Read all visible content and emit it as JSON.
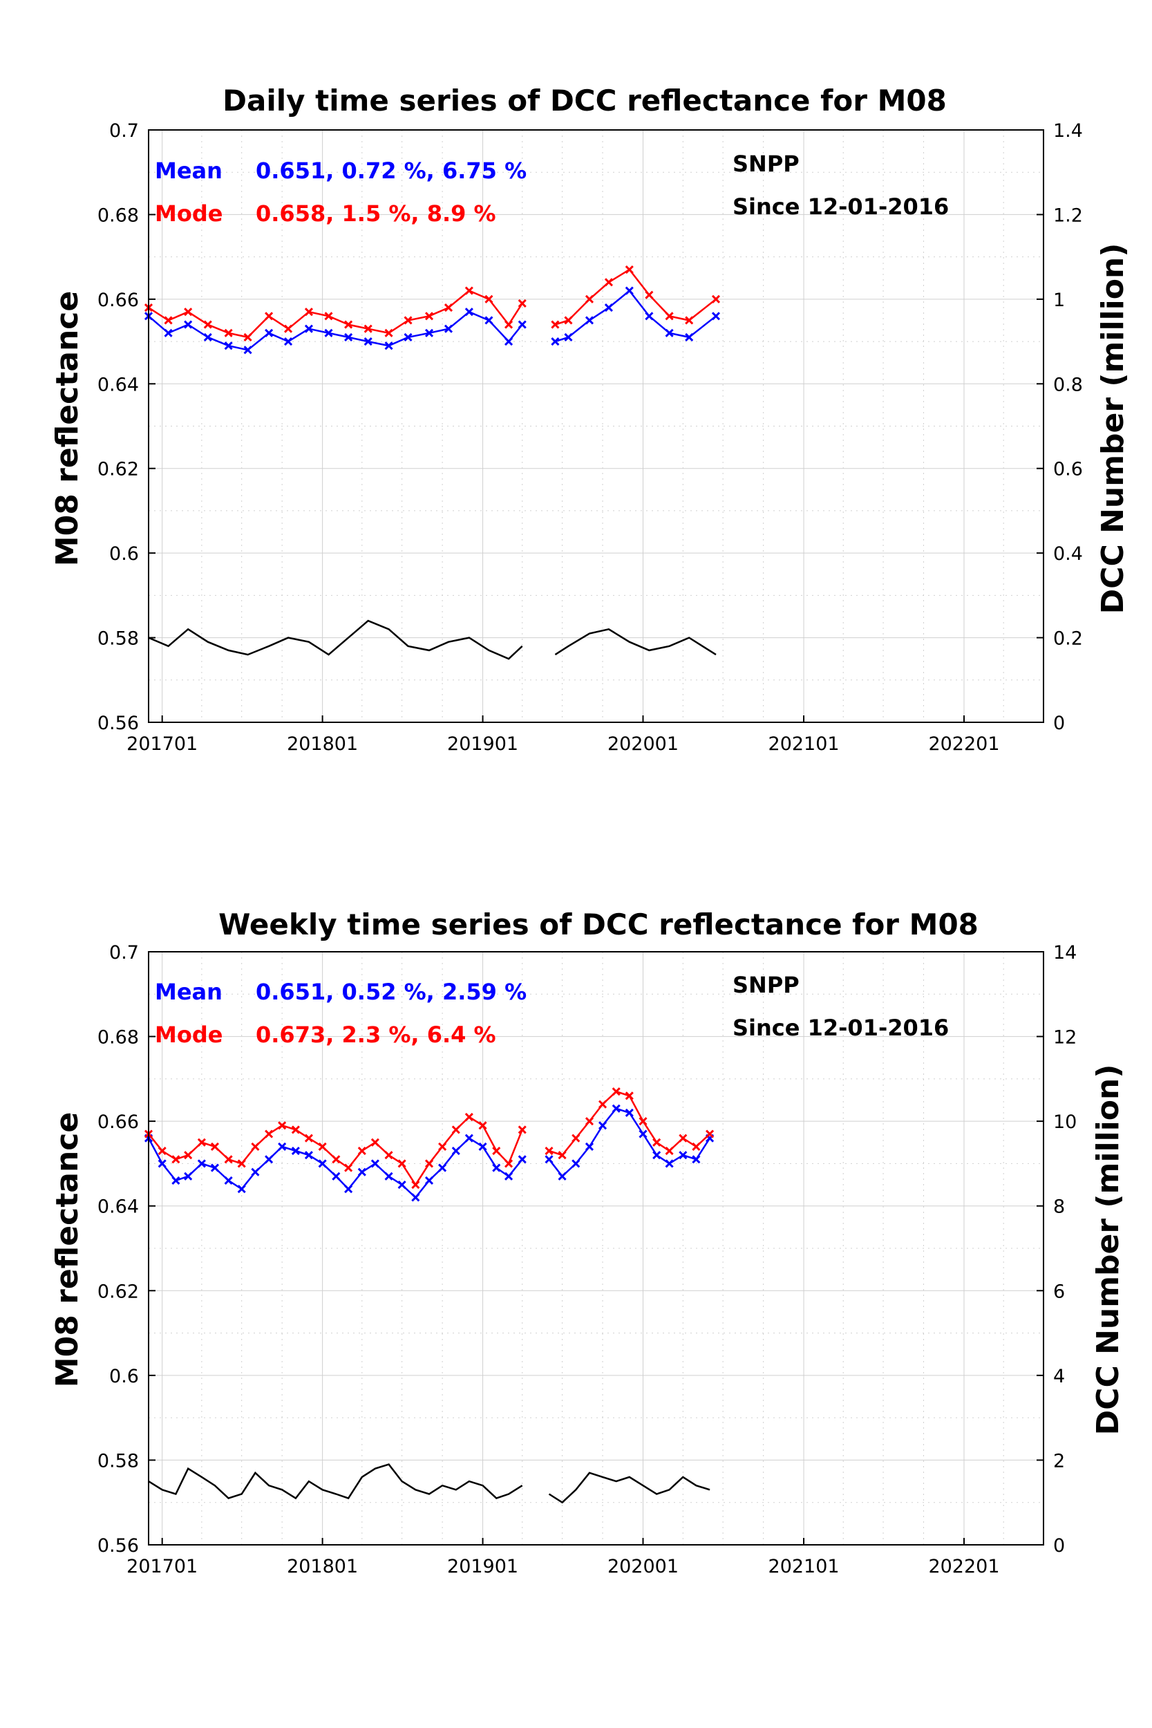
{
  "colors": {
    "mean": "#0000ff",
    "mode": "#ff0000",
    "count": "#000000",
    "grid": "#cfcfcf"
  },
  "chart_data": [
    {
      "type": "line",
      "title": "Daily time series of DCC reflectance for M08",
      "ylabel": "M08 reflectance",
      "y2label": "DCC Number (million)",
      "ylim": [
        0.56,
        0.7
      ],
      "y2lim": [
        0,
        1.4
      ],
      "xlim": [
        "2016-12-01",
        "2022-07-01"
      ],
      "yticks": [
        "0.56",
        "0.58",
        "0.6",
        "0.62",
        "0.64",
        "0.66",
        "0.68",
        "0.7"
      ],
      "y2ticks": [
        "0",
        "0.2",
        "0.4",
        "0.6",
        "0.8",
        "1",
        "1.2",
        "1.4"
      ],
      "xticks": [
        {
          "label": "201701",
          "x": "2017-01-01"
        },
        {
          "label": "201801",
          "x": "2018-01-01"
        },
        {
          "label": "201901",
          "x": "2019-01-01"
        },
        {
          "label": "202001",
          "x": "2020-01-01"
        },
        {
          "label": "202101",
          "x": "2021-01-01"
        },
        {
          "label": "202201",
          "x": "2022-01-01"
        }
      ],
      "grid": true,
      "annotations": {
        "mean_label": "Mean",
        "mean_stats": "0.651, 0.72 %, 6.75 %",
        "mode_label": "Mode",
        "mode_stats": "0.658, 1.5 %, 8.9 %",
        "sensor": "SNPP",
        "since": "Since 12-01-2016"
      },
      "series": [
        {
          "name": "Mean",
          "axis": "left",
          "color": "#0000ff",
          "markers": true,
          "x": [
            "2016-12-01",
            "2017-01-15",
            "2017-03-01",
            "2017-04-15",
            "2017-06-01",
            "2017-07-15",
            "2017-09-01",
            "2017-10-15",
            "2017-12-01",
            "2018-01-15",
            "2018-03-01",
            "2018-04-15",
            "2018-06-01",
            "2018-07-15",
            "2018-09-01",
            "2018-10-15",
            "2018-12-01",
            "2019-01-15",
            "2019-03-01",
            "2019-04-01",
            null,
            "2019-06-15",
            "2019-07-15",
            "2019-09-01",
            "2019-10-15",
            "2019-12-01",
            "2020-01-15",
            "2020-03-01",
            "2020-04-15",
            "2020-06-15"
          ],
          "y": [
            0.656,
            0.652,
            0.654,
            0.651,
            0.649,
            0.648,
            0.652,
            0.65,
            0.653,
            0.652,
            0.651,
            0.65,
            0.649,
            0.651,
            0.652,
            0.653,
            0.657,
            0.655,
            0.65,
            0.654,
            null,
            0.65,
            0.651,
            0.655,
            0.658,
            0.662,
            0.656,
            0.652,
            0.651,
            0.656
          ]
        },
        {
          "name": "Mode",
          "axis": "left",
          "color": "#ff0000",
          "markers": true,
          "x": [
            "2016-12-01",
            "2017-01-15",
            "2017-03-01",
            "2017-04-15",
            "2017-06-01",
            "2017-07-15",
            "2017-09-01",
            "2017-10-15",
            "2017-12-01",
            "2018-01-15",
            "2018-03-01",
            "2018-04-15",
            "2018-06-01",
            "2018-07-15",
            "2018-09-01",
            "2018-10-15",
            "2018-12-01",
            "2019-01-15",
            "2019-03-01",
            "2019-04-01",
            null,
            "2019-06-15",
            "2019-07-15",
            "2019-09-01",
            "2019-10-15",
            "2019-12-01",
            "2020-01-15",
            "2020-03-01",
            "2020-04-15",
            "2020-06-15"
          ],
          "y": [
            0.658,
            0.655,
            0.657,
            0.654,
            0.652,
            0.651,
            0.656,
            0.653,
            0.657,
            0.656,
            0.654,
            0.653,
            0.652,
            0.655,
            0.656,
            0.658,
            0.662,
            0.66,
            0.654,
            0.659,
            null,
            0.654,
            0.655,
            0.66,
            0.664,
            0.667,
            0.661,
            0.656,
            0.655,
            0.66
          ]
        },
        {
          "name": "DCC Number",
          "axis": "right",
          "color": "#000000",
          "markers": false,
          "x": [
            "2016-12-01",
            "2017-01-15",
            "2017-03-01",
            "2017-04-15",
            "2017-06-01",
            "2017-07-15",
            "2017-09-01",
            "2017-10-15",
            "2017-12-01",
            "2018-01-15",
            "2018-03-01",
            "2018-04-15",
            "2018-06-01",
            "2018-07-15",
            "2018-09-01",
            "2018-10-15",
            "2018-12-01",
            "2019-01-15",
            "2019-03-01",
            "2019-04-01",
            null,
            "2019-06-15",
            "2019-07-15",
            "2019-09-01",
            "2019-10-15",
            "2019-12-01",
            "2020-01-15",
            "2020-03-01",
            "2020-04-15",
            "2020-06-15"
          ],
          "y": [
            0.2,
            0.18,
            0.22,
            0.19,
            0.17,
            0.16,
            0.18,
            0.2,
            0.19,
            0.16,
            0.2,
            0.24,
            0.22,
            0.18,
            0.17,
            0.19,
            0.2,
            0.17,
            0.15,
            0.18,
            null,
            0.16,
            0.18,
            0.21,
            0.22,
            0.19,
            0.17,
            0.18,
            0.2,
            0.16
          ]
        }
      ]
    },
    {
      "type": "line",
      "title": "Weekly time series of DCC reflectance for M08",
      "ylabel": "M08 reflectance",
      "y2label": "DCC Number (million)",
      "ylim": [
        0.56,
        0.7
      ],
      "y2lim": [
        0,
        14
      ],
      "xlim": [
        "2016-12-01",
        "2022-07-01"
      ],
      "yticks": [
        "0.56",
        "0.58",
        "0.6",
        "0.62",
        "0.64",
        "0.66",
        "0.68",
        "0.7"
      ],
      "y2ticks": [
        "0",
        "2",
        "4",
        "6",
        "8",
        "10",
        "12",
        "14"
      ],
      "xticks": [
        {
          "label": "201701",
          "x": "2017-01-01"
        },
        {
          "label": "201801",
          "x": "2018-01-01"
        },
        {
          "label": "201901",
          "x": "2019-01-01"
        },
        {
          "label": "202001",
          "x": "2020-01-01"
        },
        {
          "label": "202101",
          "x": "2021-01-01"
        },
        {
          "label": "202201",
          "x": "2022-01-01"
        }
      ],
      "grid": true,
      "annotations": {
        "mean_label": "Mean",
        "mean_stats": "0.651, 0.52 %, 2.59 %",
        "mode_label": "Mode",
        "mode_stats": "0.673, 2.3 %, 6.4 %",
        "sensor": "SNPP",
        "since": "Since 12-01-2016"
      },
      "series": [
        {
          "name": "Mean",
          "axis": "left",
          "color": "#0000ff",
          "markers": true,
          "x": [
            "2016-12-01",
            "2017-01-01",
            "2017-02-01",
            "2017-03-01",
            "2017-04-01",
            "2017-05-01",
            "2017-06-01",
            "2017-07-01",
            "2017-08-01",
            "2017-09-01",
            "2017-10-01",
            "2017-11-01",
            "2017-12-01",
            "2018-01-01",
            "2018-02-01",
            "2018-03-01",
            "2018-04-01",
            "2018-05-01",
            "2018-06-01",
            "2018-07-01",
            "2018-08-01",
            "2018-09-01",
            "2018-10-01",
            "2018-11-01",
            "2018-12-01",
            "2019-01-01",
            "2019-02-01",
            "2019-03-01",
            "2019-04-01",
            null,
            "2019-06-01",
            "2019-07-01",
            "2019-08-01",
            "2019-09-01",
            "2019-10-01",
            "2019-11-01",
            "2019-12-01",
            "2020-01-01",
            "2020-02-01",
            "2020-03-01",
            "2020-04-01",
            "2020-05-01",
            "2020-06-01"
          ],
          "y": [
            0.656,
            0.65,
            0.646,
            0.647,
            0.65,
            0.649,
            0.646,
            0.644,
            0.648,
            0.651,
            0.654,
            0.653,
            0.652,
            0.65,
            0.647,
            0.644,
            0.648,
            0.65,
            0.647,
            0.645,
            0.642,
            0.646,
            0.649,
            0.653,
            0.656,
            0.654,
            0.649,
            0.647,
            0.651,
            null,
            0.651,
            0.647,
            0.65,
            0.654,
            0.659,
            0.663,
            0.662,
            0.657,
            0.652,
            0.65,
            0.652,
            0.651,
            0.656
          ]
        },
        {
          "name": "Mode",
          "axis": "left",
          "color": "#ff0000",
          "markers": true,
          "x": [
            "2016-12-01",
            "2017-01-01",
            "2017-02-01",
            "2017-03-01",
            "2017-04-01",
            "2017-05-01",
            "2017-06-01",
            "2017-07-01",
            "2017-08-01",
            "2017-09-01",
            "2017-10-01",
            "2017-11-01",
            "2017-12-01",
            "2018-01-01",
            "2018-02-01",
            "2018-03-01",
            "2018-04-01",
            "2018-05-01",
            "2018-06-01",
            "2018-07-01",
            "2018-08-01",
            "2018-09-01",
            "2018-10-01",
            "2018-11-01",
            "2018-12-01",
            "2019-01-01",
            "2019-02-01",
            "2019-03-01",
            "2019-04-01",
            null,
            "2019-06-01",
            "2019-07-01",
            "2019-08-01",
            "2019-09-01",
            "2019-10-01",
            "2019-11-01",
            "2019-12-01",
            "2020-01-01",
            "2020-02-01",
            "2020-03-01",
            "2020-04-01",
            "2020-05-01",
            "2020-06-01"
          ],
          "y": [
            0.657,
            0.653,
            0.651,
            0.652,
            0.655,
            0.654,
            0.651,
            0.65,
            0.654,
            0.657,
            0.659,
            0.658,
            0.656,
            0.654,
            0.651,
            0.649,
            0.653,
            0.655,
            0.652,
            0.65,
            0.645,
            0.65,
            0.654,
            0.658,
            0.661,
            0.659,
            0.653,
            0.65,
            0.658,
            null,
            0.653,
            0.652,
            0.656,
            0.66,
            0.664,
            0.667,
            0.666,
            0.66,
            0.655,
            0.653,
            0.656,
            0.654,
            0.657
          ]
        },
        {
          "name": "DCC Number",
          "axis": "right",
          "color": "#000000",
          "markers": false,
          "x": [
            "2016-12-01",
            "2017-01-01",
            "2017-02-01",
            "2017-03-01",
            "2017-04-01",
            "2017-05-01",
            "2017-06-01",
            "2017-07-01",
            "2017-08-01",
            "2017-09-01",
            "2017-10-01",
            "2017-11-01",
            "2017-12-01",
            "2018-01-01",
            "2018-02-01",
            "2018-03-01",
            "2018-04-01",
            "2018-05-01",
            "2018-06-01",
            "2018-07-01",
            "2018-08-01",
            "2018-09-01",
            "2018-10-01",
            "2018-11-01",
            "2018-12-01",
            "2019-01-01",
            "2019-02-01",
            "2019-03-01",
            "2019-04-01",
            null,
            "2019-06-01",
            "2019-07-01",
            "2019-08-01",
            "2019-09-01",
            "2019-10-01",
            "2019-11-01",
            "2019-12-01",
            "2020-01-01",
            "2020-02-01",
            "2020-03-01",
            "2020-04-01",
            "2020-05-01",
            "2020-06-01"
          ],
          "y": [
            1.5,
            1.3,
            1.2,
            1.8,
            1.6,
            1.4,
            1.1,
            1.2,
            1.7,
            1.4,
            1.3,
            1.1,
            1.5,
            1.3,
            1.2,
            1.1,
            1.6,
            1.8,
            1.9,
            1.5,
            1.3,
            1.2,
            1.4,
            1.3,
            1.5,
            1.4,
            1.1,
            1.2,
            1.4,
            null,
            1.2,
            1.0,
            1.3,
            1.7,
            1.6,
            1.5,
            1.6,
            1.4,
            1.2,
            1.3,
            1.6,
            1.4,
            1.3
          ]
        }
      ]
    }
  ]
}
